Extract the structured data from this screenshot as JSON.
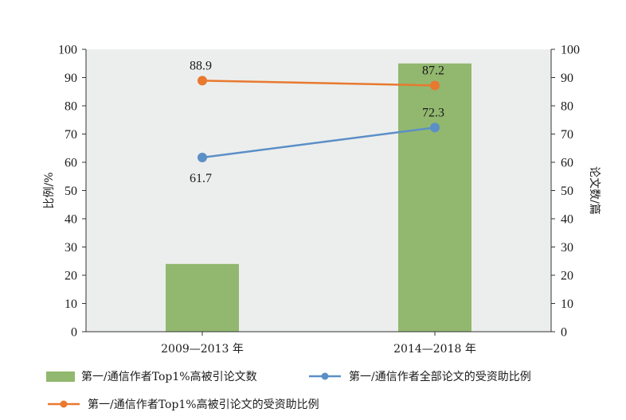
{
  "chart_data": {
    "type": "bar+line",
    "categories": [
      "2009—2013 年",
      "2014—2018 年"
    ],
    "bar_series": {
      "name": "第一/通信作者Top1%高被引论文数",
      "axis": "right",
      "values": [
        24,
        95
      ],
      "color": "#92b86f"
    },
    "line_series": [
      {
        "name": "第一/通信作者全部论文的受资助比例",
        "axis": "left",
        "values": [
          61.7,
          72.3
        ],
        "labels": [
          "61.7",
          "72.3"
        ],
        "color": "#5b8fc7"
      },
      {
        "name": "第一/通信作者Top1%高被引论文的受资助比例",
        "axis": "left",
        "values": [
          88.9,
          87.2
        ],
        "labels": [
          "88.9",
          "87.2"
        ],
        "color": "#e8792f"
      }
    ],
    "ylabel_left": "比例/%",
    "ylabel_right": "论文数/篇",
    "ylim_left": [
      0,
      100
    ],
    "ylim_right": [
      0,
      100
    ],
    "yticks": [
      "0",
      "10",
      "20",
      "30",
      "40",
      "50",
      "60",
      "70",
      "80",
      "90",
      "100"
    ],
    "plot_background": "#eceeed",
    "grid": false,
    "legend_position": "bottom"
  }
}
